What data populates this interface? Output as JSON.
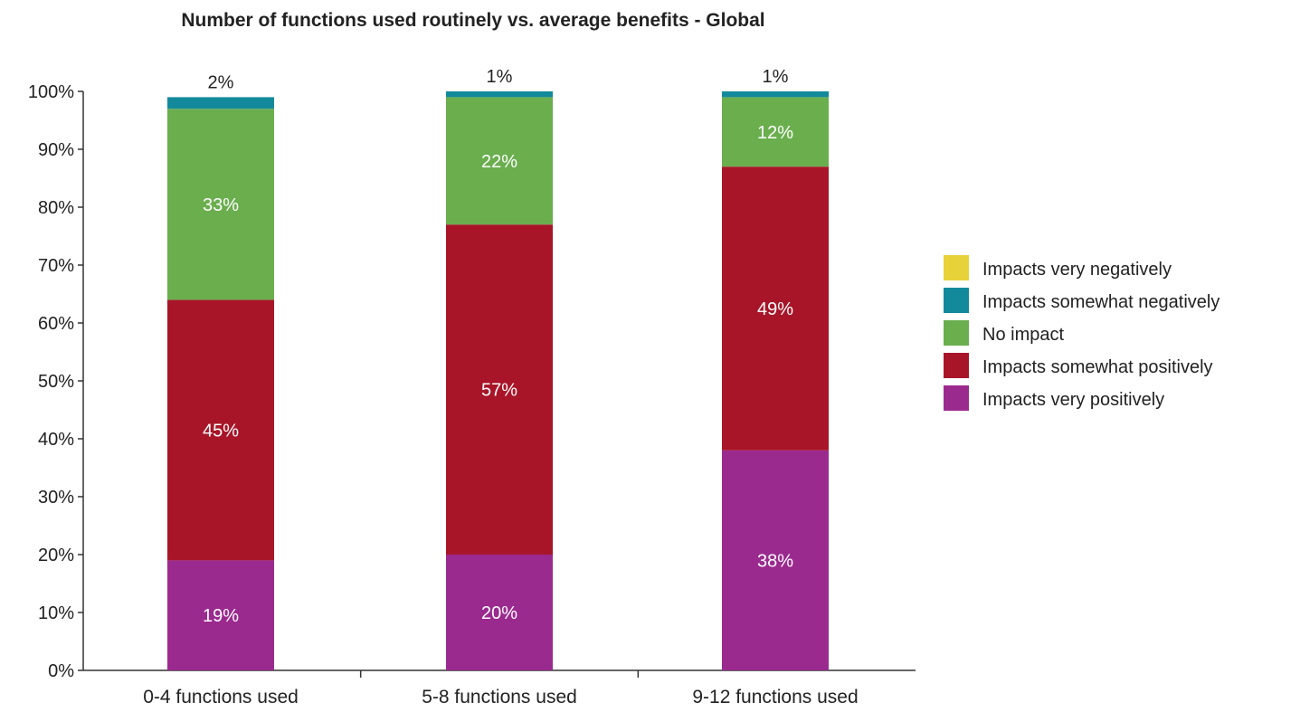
{
  "chart_data": {
    "type": "bar",
    "stacked": true,
    "title": "Number of functions used routinely vs. average benefits - Global",
    "xlabel": "",
    "ylabel": "",
    "ylim": [
      0,
      100
    ],
    "yticks": [
      0,
      10,
      20,
      30,
      40,
      50,
      60,
      70,
      80,
      90,
      100
    ],
    "ytick_suffix": "%",
    "grid": false,
    "legend_position": "right",
    "categories": [
      "0-4 functions used",
      "5-8 functions used",
      "9-12 functions used"
    ],
    "series": [
      {
        "name": "Impacts very positively",
        "color": "#9b2a8f",
        "values": [
          19,
          20,
          38
        ],
        "labels": [
          "19%",
          "20%",
          "38%"
        ]
      },
      {
        "name": "Impacts somewhat positively",
        "color": "#a81528",
        "values": [
          45,
          57,
          49
        ],
        "labels": [
          "45%",
          "57%",
          "49%"
        ]
      },
      {
        "name": "No impact",
        "color": "#6aae4e",
        "values": [
          33,
          22,
          12
        ],
        "labels": [
          "33%",
          "22%",
          "12%"
        ]
      },
      {
        "name": "Impacts somewhat negatively",
        "color": "#138a9c",
        "values": [
          2,
          1,
          1
        ],
        "labels": [
          "2%",
          "1%",
          "1%"
        ]
      },
      {
        "name": "Impacts very negatively",
        "color": "#e8d23a",
        "values": [
          0,
          0,
          0
        ],
        "labels": [
          "",
          "",
          ""
        ]
      }
    ],
    "legend_order": [
      "Impacts very negatively",
      "Impacts somewhat negatively",
      "No impact",
      "Impacts somewhat positively",
      "Impacts very positively"
    ]
  }
}
